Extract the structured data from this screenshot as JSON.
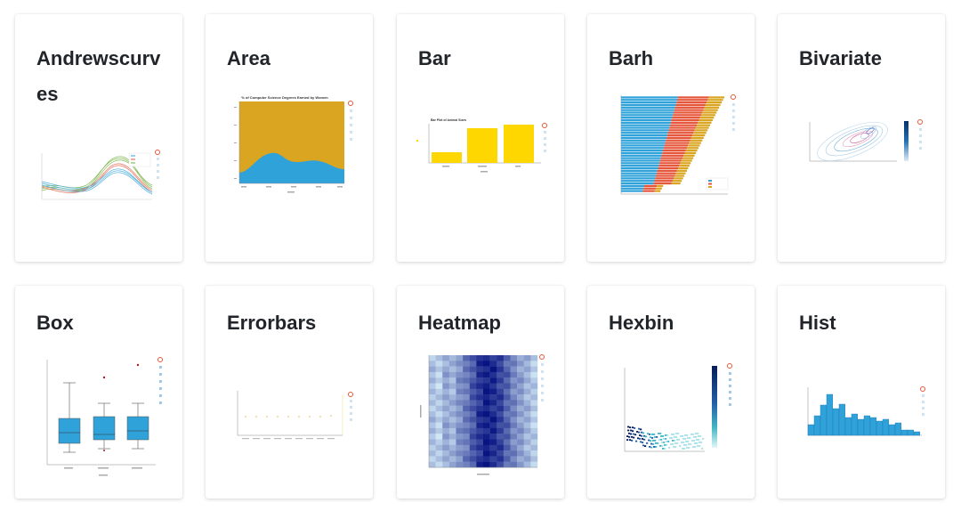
{
  "gallery": {
    "cards": [
      {
        "id": "andrewscurves",
        "title": "Andrewscurves"
      },
      {
        "id": "area",
        "title": "Area"
      },
      {
        "id": "bar",
        "title": "Bar"
      },
      {
        "id": "barh",
        "title": "Barh"
      },
      {
        "id": "bivariate",
        "title": "Bivariate"
      },
      {
        "id": "box",
        "title": "Box"
      },
      {
        "id": "errorbars",
        "title": "Errorbars"
      },
      {
        "id": "heatmap",
        "title": "Heatmap"
      },
      {
        "id": "hexbin",
        "title": "Hexbin"
      },
      {
        "id": "hist",
        "title": "Hist"
      }
    ]
  },
  "colors": {
    "title_text": "#212529",
    "gold": "#daa520",
    "blue": "#30a2da",
    "yellow": "#ffd700",
    "red": "#e5563b",
    "green": "#6fb13c"
  },
  "thumbnails": {
    "area": {
      "title": "% of Computer Science Degrees Earned by Women"
    },
    "bar": {
      "title": "Bar Plot of Animal Sizes"
    }
  }
}
